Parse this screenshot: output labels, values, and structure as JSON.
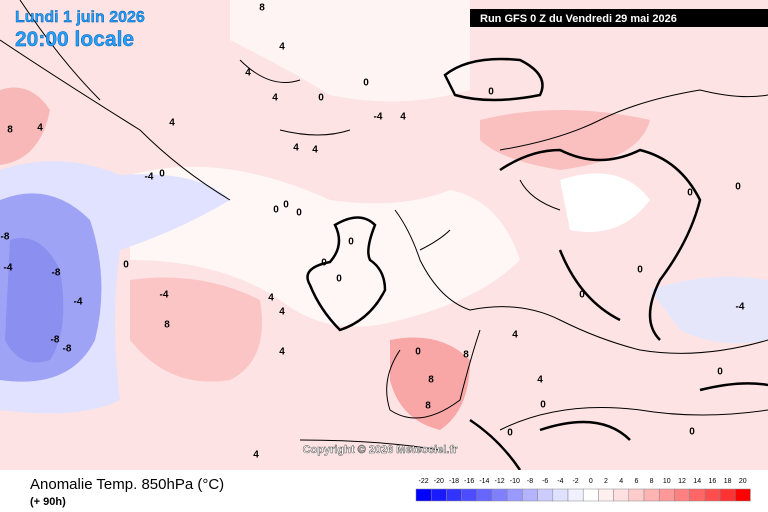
{
  "header": {
    "date": "Lundi 1 juin 2026",
    "time": "20:00 locale",
    "run": "Run GFS 0 Z du Vendredi 29 mai 2026"
  },
  "footer": {
    "title": "Anomalie Temp. 850hPa (°C)",
    "lead": "(+ 90h)"
  },
  "copyright": "Copyright © 2026 Meteociel.fr",
  "colorbar": {
    "labels": [
      -22,
      -20,
      -18,
      -16,
      -14,
      -12,
      -10,
      -8,
      -6,
      -4,
      -2,
      0,
      2,
      4,
      6,
      8,
      10,
      12,
      14,
      16,
      18,
      20
    ],
    "colors": [
      "#0000ff",
      "#1a1aff",
      "#3333ff",
      "#4d4dff",
      "#6666ff",
      "#8080ff",
      "#9999ff",
      "#b3b3ff",
      "#ccccff",
      "#e0e0ff",
      "#f0f0ff",
      "#ffffff",
      "#fff0f0",
      "#ffe0e0",
      "#ffcccc",
      "#ffb3b3",
      "#ff9999",
      "#ff8080",
      "#ff6666",
      "#ff4d4d",
      "#ff3333",
      "#ff0000"
    ]
  },
  "contour_labels": [
    8,
    4,
    4,
    4,
    0,
    0,
    0,
    -4,
    4,
    4,
    4,
    4,
    4,
    8,
    0,
    -4,
    0,
    0,
    0,
    0,
    0,
    0,
    0,
    -4,
    -4,
    -8,
    -8,
    -8,
    -8,
    -4,
    4,
    4,
    8,
    4,
    4,
    0,
    8,
    8,
    8,
    4,
    4,
    0,
    0,
    0,
    0,
    -4,
    0,
    0,
    0,
    0
  ]
}
